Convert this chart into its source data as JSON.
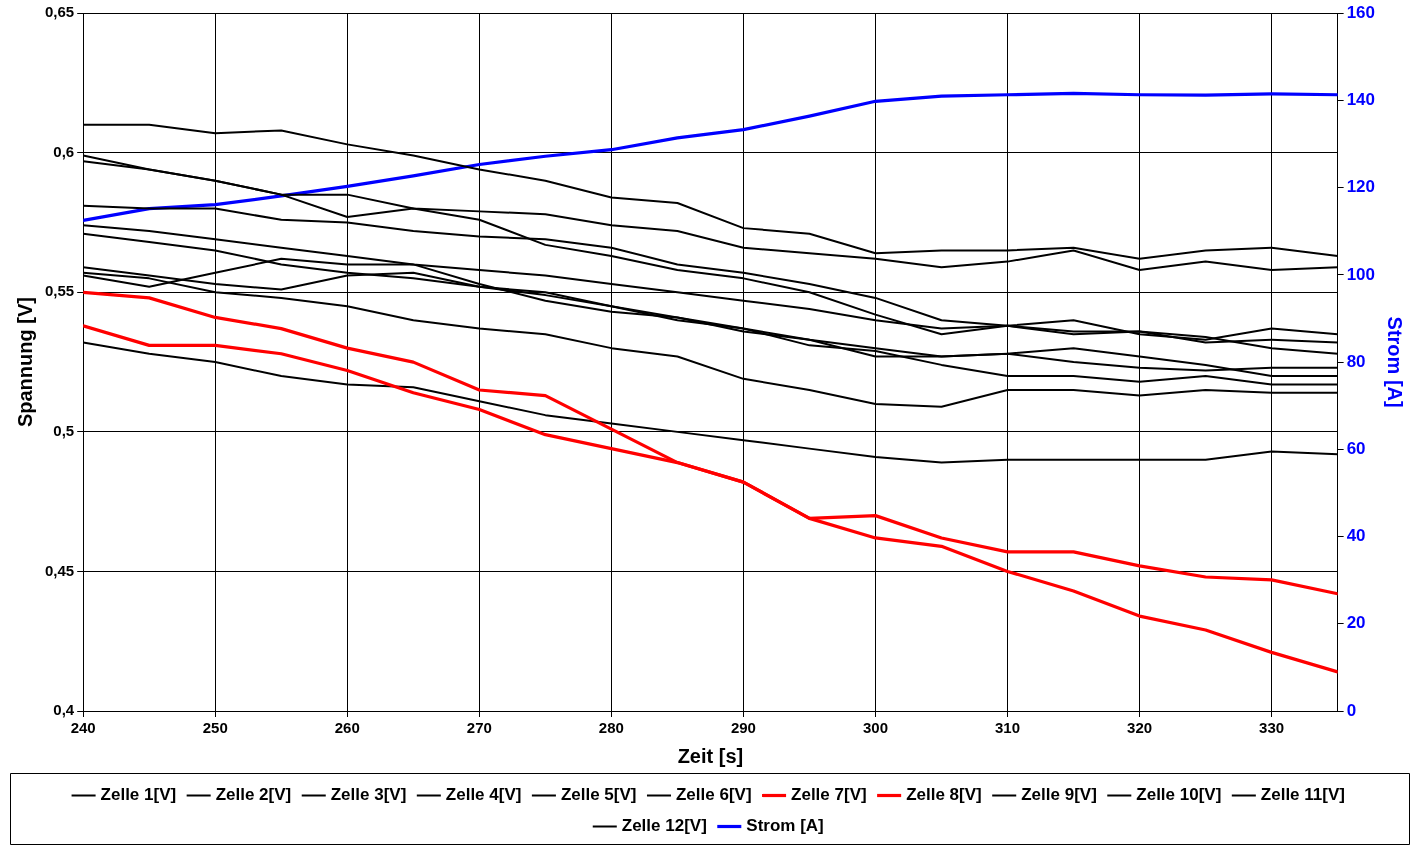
{
  "chart_data": {
    "type": "line",
    "xlabel": "Zeit [s]",
    "ylabel": "Spannung [V]",
    "y2label": "Strom [A]",
    "x": [
      240,
      245,
      250,
      255,
      260,
      265,
      270,
      275,
      280,
      285,
      290,
      295,
      300,
      305,
      310,
      315,
      320,
      325,
      330,
      335
    ],
    "xlim": [
      240,
      335
    ],
    "xticks": [
      240,
      250,
      260,
      270,
      280,
      290,
      300,
      310,
      320,
      330
    ],
    "ylim": [
      0.4,
      0.65
    ],
    "yticks": [
      {
        "value": 0.4,
        "label": "0,4"
      },
      {
        "value": 0.45,
        "label": "0,45"
      },
      {
        "value": 0.5,
        "label": "0,5"
      },
      {
        "value": 0.55,
        "label": "0,55"
      },
      {
        "value": 0.6,
        "label": "0,6"
      },
      {
        "value": 0.65,
        "label": "0,65"
      }
    ],
    "y2lim": [
      0,
      160
    ],
    "y2ticks": [
      0,
      20,
      40,
      60,
      80,
      100,
      120,
      140,
      160
    ],
    "grid": true,
    "legend": "bottom",
    "marker": "none",
    "line_style": "solid",
    "series": [
      {
        "name": "Zelle 1[V]",
        "color": "#000000",
        "values": [
          0.61,
          0.61,
          0.607,
          0.608,
          0.603,
          0.599,
          0.594,
          0.59,
          0.584,
          0.582,
          0.573,
          0.571,
          0.564,
          0.565,
          0.565,
          0.566,
          0.562,
          0.565,
          0.566,
          0.563
        ]
      },
      {
        "name": "Zelle 2[V]",
        "color": "#000000",
        "values": [
          0.599,
          0.594,
          0.59,
          0.585,
          0.577,
          0.58,
          0.576,
          0.567,
          0.563,
          0.558,
          0.555,
          0.55,
          0.542,
          0.535,
          0.538,
          0.54,
          0.535,
          0.533,
          0.537,
          0.535
        ]
      },
      {
        "name": "Zelle 3[V]",
        "color": "#000000",
        "values": [
          0.597,
          0.594,
          0.59,
          0.585,
          0.585,
          0.58,
          0.579,
          0.578,
          0.574,
          0.572,
          0.566,
          0.564,
          0.562,
          0.559,
          0.561,
          0.565,
          0.558,
          0.561,
          0.558,
          0.559
        ]
      },
      {
        "name": "Zelle 4[V]",
        "color": "#000000",
        "values": [
          0.581,
          0.58,
          0.58,
          0.576,
          0.575,
          0.572,
          0.57,
          0.569,
          0.566,
          0.56,
          0.557,
          0.553,
          0.548,
          0.54,
          0.538,
          0.535,
          0.536,
          0.532,
          0.533,
          0.532
        ]
      },
      {
        "name": "Zelle 5[V]",
        "color": "#000000",
        "values": [
          0.574,
          0.572,
          0.569,
          0.566,
          0.563,
          0.56,
          0.558,
          0.556,
          0.553,
          0.55,
          0.547,
          0.544,
          0.54,
          0.537,
          0.538,
          0.536,
          0.536,
          0.534,
          0.53,
          0.528
        ]
      },
      {
        "name": "Zelle 6[V]",
        "color": "#000000",
        "values": [
          0.571,
          0.568,
          0.565,
          0.56,
          0.557,
          0.555,
          0.552,
          0.55,
          0.545,
          0.54,
          0.537,
          0.533,
          0.53,
          0.527,
          0.528,
          0.525,
          0.523,
          0.522,
          0.523,
          0.523
        ]
      },
      {
        "name": "Zelle 7[V]",
        "color": "#ff0000",
        "values": [
          0.55,
          0.548,
          0.541,
          0.537,
          0.53,
          0.525,
          0.515,
          0.513,
          0.501,
          0.489,
          0.482,
          0.469,
          0.47,
          0.462,
          0.457,
          0.457,
          0.452,
          0.448,
          0.447,
          0.442
        ]
      },
      {
        "name": "Zelle 8[V]",
        "color": "#ff0000",
        "values": [
          0.538,
          0.531,
          0.531,
          0.528,
          0.522,
          0.514,
          0.508,
          0.499,
          0.494,
          0.489,
          0.482,
          0.469,
          0.462,
          0.459,
          0.45,
          0.443,
          0.434,
          0.429,
          0.421,
          0.414
        ]
      },
      {
        "name": "Zelle 9[V]",
        "color": "#000000",
        "values": [
          0.559,
          0.556,
          0.553,
          0.551,
          0.556,
          0.557,
          0.552,
          0.549,
          0.545,
          0.541,
          0.536,
          0.533,
          0.527,
          0.527,
          0.528,
          0.53,
          0.527,
          0.524,
          0.52,
          0.52
        ]
      },
      {
        "name": "Zelle 10[V]",
        "color": "#000000",
        "values": [
          0.557,
          0.555,
          0.55,
          0.548,
          0.545,
          0.54,
          0.537,
          0.535,
          0.53,
          0.527,
          0.519,
          0.515,
          0.51,
          0.509,
          0.515,
          0.515,
          0.513,
          0.515,
          0.514,
          0.514
        ]
      },
      {
        "name": "Zelle 11[V]",
        "color": "#000000",
        "values": [
          0.556,
          0.552,
          0.557,
          0.562,
          0.56,
          0.56,
          0.553,
          0.547,
          0.543,
          0.541,
          0.537,
          0.531,
          0.529,
          0.524,
          0.52,
          0.52,
          0.518,
          0.52,
          0.517,
          0.517
        ]
      },
      {
        "name": "Zelle 12[V]",
        "color": "#000000",
        "values": [
          0.532,
          0.528,
          0.525,
          0.52,
          0.517,
          0.516,
          0.511,
          0.506,
          0.503,
          0.5,
          0.497,
          0.494,
          0.491,
          0.489,
          0.49,
          0.49,
          0.49,
          0.49,
          0.493,
          0.492
        ]
      },
      {
        "name": "Strom [A]",
        "color": "#0000ff",
        "axis": "y2",
        "values": [
          112.5,
          115.2,
          116.1,
          118.1,
          120.3,
          122.7,
          125.3,
          127.2,
          128.7,
          131.4,
          133.3,
          136.4,
          139.8,
          141.0,
          141.3,
          141.6,
          141.3,
          141.2,
          141.5,
          141.3
        ]
      }
    ]
  }
}
